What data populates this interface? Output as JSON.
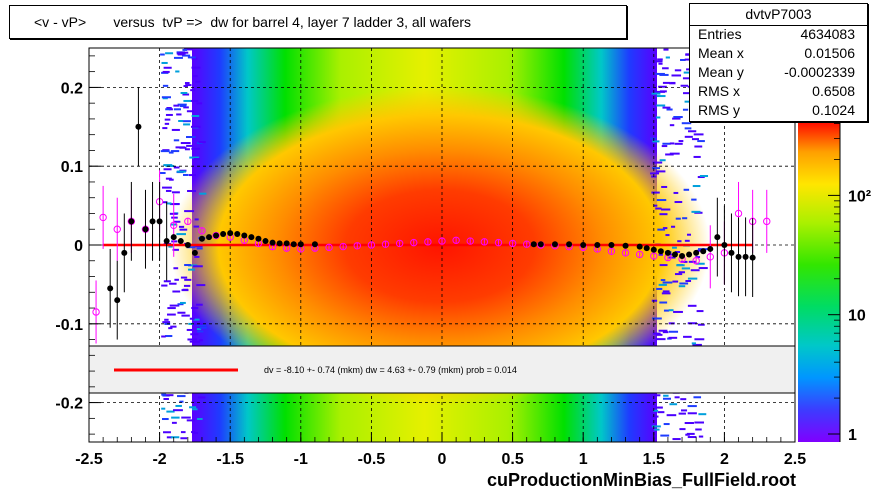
{
  "title": "<v - vP>       versus  tvP =>  dw for barrel 4, layer 7 ladder 3, all wafers",
  "stats": {
    "name": "dvtvP7003",
    "rows": [
      {
        "label": "Entries",
        "value": "4634083"
      },
      {
        "label": "Mean x",
        "value": "0.01506"
      },
      {
        "label": "Mean y",
        "value": "-0.0002339"
      },
      {
        "label": "RMS x",
        "value": "0.6508"
      },
      {
        "label": "RMS y",
        "value": "0.1024"
      }
    ]
  },
  "legend_text": "dv =   -8.10 +-  0.74 (mkm) dw =    4.63 +-  0.79 (mkm) prob = 0.014",
  "footer": "cuProductionMinBias_FullField.root",
  "colors": {
    "fit_line": "#ff0000",
    "profile_dv": "#000000",
    "profile_dw": "#ff00ff"
  },
  "chart_data": {
    "type": "heatmap",
    "xlim": [
      -2.5,
      2.5
    ],
    "ylim": [
      -0.25,
      0.25
    ],
    "xticks": [
      -2.5,
      -2,
      -1.5,
      -1,
      -0.5,
      0,
      0.5,
      1,
      1.5,
      2,
      2.5
    ],
    "xtick_labels": [
      "-2.5",
      "-2",
      "-1.5",
      "-1",
      "-0.5",
      "0",
      "0.5",
      "1",
      "1.5",
      "2",
      "2.5"
    ],
    "yticks": [
      -0.2,
      -0.1,
      0,
      0.1,
      0.2
    ],
    "ytick_labels": [
      "-0.2",
      "-0.1",
      "0",
      "0.1",
      "0.2"
    ],
    "grid": true,
    "colorbar": {
      "scale": "log",
      "ticks": [
        1,
        10,
        100
      ],
      "tick_labels": [
        "1",
        "10",
        "10²"
      ]
    },
    "fit_line": {
      "x": [
        -2.4,
        2.2
      ],
      "y": [
        0.0,
        0.0
      ]
    },
    "profile_dv": {
      "x": [
        -2.35,
        -2.3,
        -2.25,
        -2.2,
        -2.15,
        -2.1,
        -2.05,
        -2.0,
        -1.95,
        -1.9,
        -1.85,
        -1.8,
        -1.75,
        -1.7,
        -1.65,
        -1.6,
        -1.55,
        -1.5,
        -1.45,
        -1.4,
        -1.35,
        -1.3,
        -1.25,
        -1.2,
        -1.15,
        -1.1,
        -1.05,
        -1.0,
        -0.9,
        0.65,
        0.7,
        0.8,
        0.9,
        1.0,
        1.1,
        1.2,
        1.3,
        1.4,
        1.45,
        1.5,
        1.55,
        1.6,
        1.65,
        1.7,
        1.75,
        1.8,
        1.85,
        1.9,
        1.95,
        2.0,
        2.05,
        2.1,
        2.15,
        2.2
      ],
      "y": [
        -0.055,
        -0.07,
        -0.01,
        0.03,
        0.15,
        0.02,
        0.03,
        0.03,
        0.005,
        0.01,
        0.005,
        0.0,
        -0.01,
        0.008,
        0.01,
        0.012,
        0.014,
        0.015,
        0.014,
        0.012,
        0.01,
        0.008,
        0.005,
        0.003,
        0.002,
        0.002,
        0.001,
        0.001,
        0.001,
        0.001,
        0.001,
        0.001,
        0.001,
        0.0,
        0.0,
        0.0,
        -0.001,
        -0.002,
        -0.004,
        -0.006,
        -0.008,
        -0.01,
        -0.012,
        -0.014,
        -0.012,
        -0.01,
        -0.008,
        -0.005,
        0.01,
        0.0,
        -0.01,
        -0.015,
        -0.015,
        -0.016
      ]
    },
    "profile_dw": {
      "x": [
        -2.45,
        -2.4,
        -2.3,
        -2.2,
        -2.1,
        -2.0,
        -1.9,
        -1.8,
        -1.7,
        -1.6,
        -1.5,
        -1.4,
        -1.3,
        -1.2,
        -1.1,
        -1.0,
        -0.9,
        -0.8,
        -0.7,
        -0.6,
        -0.5,
        -0.4,
        -0.3,
        -0.2,
        -0.1,
        0.0,
        0.1,
        0.2,
        0.3,
        0.4,
        0.5,
        0.6,
        0.7,
        0.8,
        0.9,
        1.0,
        1.1,
        1.2,
        1.3,
        1.4,
        1.5,
        1.6,
        1.7,
        1.8,
        1.9,
        2.0,
        2.1,
        2.2,
        2.3
      ],
      "y": [
        -0.085,
        0.035,
        0.02,
        0.03,
        0.02,
        0.055,
        0.025,
        0.03,
        0.018,
        0.012,
        0.01,
        0.006,
        0.002,
        -0.002,
        -0.004,
        -0.005,
        -0.004,
        -0.003,
        -0.002,
        -0.001,
        0.0,
        0.001,
        0.002,
        0.003,
        0.004,
        0.005,
        0.006,
        0.005,
        0.004,
        0.003,
        0.002,
        0.001,
        0.0,
        -0.001,
        -0.002,
        -0.003,
        -0.005,
        -0.008,
        -0.01,
        -0.012,
        -0.014,
        -0.016,
        -0.018,
        -0.02,
        -0.015,
        -0.01,
        0.04,
        0.03,
        0.03
      ]
    }
  }
}
